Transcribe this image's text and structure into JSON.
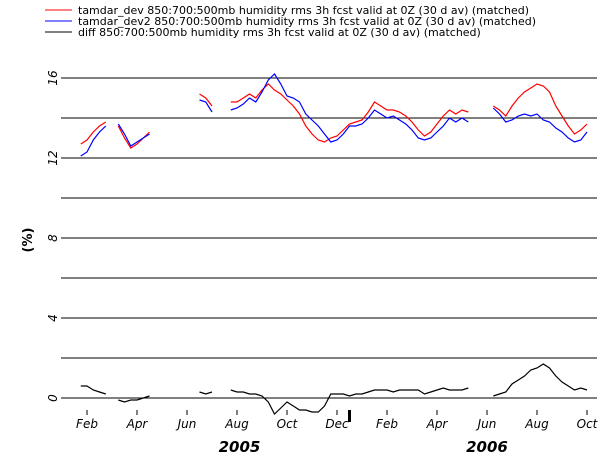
{
  "chart_data": {
    "type": "line",
    "y_label": "(%)",
    "xlim": [
      0.2,
      21.4
    ],
    "ylim": [
      -0.6,
      16.4
    ],
    "yticks": [
      0,
      4,
      8,
      12,
      16
    ],
    "grid": [
      0,
      2,
      4,
      6,
      8,
      10,
      12,
      14,
      16
    ],
    "xticks": [
      {
        "value": 1,
        "label": "Feb"
      },
      {
        "value": 3,
        "label": "Apr"
      },
      {
        "value": 5,
        "label": "Jun"
      },
      {
        "value": 7,
        "label": "Aug"
      },
      {
        "value": 9,
        "label": "Oct"
      },
      {
        "value": 11,
        "label": "Dec"
      },
      {
        "value": 13,
        "label": "Feb"
      },
      {
        "value": 15,
        "label": "Apr"
      },
      {
        "value": 17,
        "label": "Jun"
      },
      {
        "value": 19,
        "label": "Aug"
      },
      {
        "value": 21,
        "label": "Oct"
      }
    ],
    "year_ticks": [
      {
        "value": 7.1,
        "label": "2005"
      },
      {
        "value": 17,
        "label": "2006"
      }
    ],
    "year_boundary": 11.5,
    "x": [
      0.75,
      1.0,
      1.25,
      1.5,
      1.75,
      2.0,
      2.25,
      2.5,
      2.75,
      3.0,
      3.25,
      3.5,
      3.75,
      4.0,
      4.25,
      4.5,
      4.75,
      5.0,
      5.25,
      5.5,
      5.75,
      6.0,
      6.25,
      6.5,
      6.75,
      7.0,
      7.25,
      7.5,
      7.75,
      8.0,
      8.25,
      8.5,
      8.75,
      9.0,
      9.25,
      9.5,
      9.75,
      10.0,
      10.25,
      10.5,
      10.75,
      11.0,
      11.25,
      11.5,
      11.75,
      12.0,
      12.25,
      12.5,
      12.75,
      13.0,
      13.25,
      13.5,
      13.75,
      14.0,
      14.25,
      14.5,
      14.75,
      15.0,
      15.25,
      15.5,
      15.75,
      16.0,
      16.25,
      16.5,
      16.75,
      17.0,
      17.25,
      17.5,
      17.75,
      18.0,
      18.25,
      18.5,
      18.75,
      19.0,
      19.25,
      19.5,
      19.75,
      20.0,
      20.25,
      20.5,
      20.75,
      21.0
    ],
    "series": [
      {
        "name": "tamdar_dev 850:700:500mb humidity rms 3h fcst valid at 0Z (30 d av) (matched)",
        "color": "#ff0000",
        "values": [
          12.7,
          12.9,
          13.3,
          13.6,
          13.8,
          null,
          13.6,
          13.0,
          12.5,
          12.7,
          13.0,
          13.3,
          null,
          null,
          null,
          null,
          null,
          null,
          null,
          15.2,
          15.0,
          14.6,
          null,
          null,
          14.8,
          14.8,
          15.0,
          15.2,
          15.0,
          15.4,
          15.7,
          15.4,
          15.2,
          14.9,
          14.6,
          14.2,
          13.6,
          13.2,
          12.9,
          12.8,
          13.0,
          13.1,
          13.4,
          13.7,
          13.8,
          13.9,
          14.3,
          14.8,
          14.6,
          14.4,
          14.4,
          14.3,
          14.1,
          13.8,
          13.4,
          13.1,
          13.3,
          13.7,
          14.1,
          14.4,
          14.2,
          14.4,
          14.3,
          null,
          null,
          null,
          14.6,
          14.4,
          14.1,
          14.6,
          15.0,
          15.3,
          15.5,
          15.7,
          15.6,
          15.3,
          14.6,
          14.1,
          13.6,
          13.2,
          13.4,
          13.7
        ]
      },
      {
        "name": "tamdar_dev2 850:700:500mb humidity rms 3h fcst valid at 0Z (30 d av) (matched)",
        "color": "#0000ff",
        "values": [
          12.1,
          12.3,
          12.9,
          13.3,
          13.6,
          null,
          13.7,
          13.2,
          12.6,
          12.8,
          13.0,
          13.2,
          null,
          null,
          null,
          null,
          null,
          null,
          null,
          14.9,
          14.8,
          14.3,
          null,
          null,
          14.4,
          14.5,
          14.7,
          15.0,
          14.8,
          15.3,
          15.9,
          16.2,
          15.7,
          15.1,
          15.0,
          14.8,
          14.2,
          13.9,
          13.6,
          13.2,
          12.8,
          12.9,
          13.2,
          13.6,
          13.6,
          13.7,
          14.0,
          14.4,
          14.2,
          14.0,
          14.1,
          13.9,
          13.7,
          13.4,
          13.0,
          12.9,
          13.0,
          13.3,
          13.6,
          14.0,
          13.8,
          14.0,
          13.8,
          null,
          null,
          null,
          14.5,
          14.2,
          13.8,
          13.9,
          14.1,
          14.2,
          14.1,
          14.2,
          13.9,
          13.8,
          13.5,
          13.3,
          13.0,
          12.8,
          12.9,
          13.3
        ]
      },
      {
        "name": "diff 850:700:500mb humidity rms 3h fcst valid at 0Z (30 d av) (matched)",
        "color": "#000000",
        "values": [
          0.6,
          0.6,
          0.4,
          0.3,
          0.2,
          null,
          -0.1,
          -0.2,
          -0.1,
          -0.1,
          0.0,
          0.1,
          null,
          null,
          null,
          null,
          null,
          null,
          null,
          0.3,
          0.2,
          0.3,
          null,
          null,
          0.4,
          0.3,
          0.3,
          0.2,
          0.2,
          0.1,
          -0.2,
          -0.8,
          -0.5,
          -0.2,
          -0.4,
          -0.6,
          -0.6,
          -0.7,
          -0.7,
          -0.4,
          0.2,
          0.2,
          0.2,
          0.1,
          0.2,
          0.2,
          0.3,
          0.4,
          0.4,
          0.4,
          0.3,
          0.4,
          0.4,
          0.4,
          0.4,
          0.2,
          0.3,
          0.4,
          0.5,
          0.4,
          0.4,
          0.4,
          0.5,
          null,
          null,
          null,
          0.1,
          0.2,
          0.3,
          0.7,
          0.9,
          1.1,
          1.4,
          1.5,
          1.7,
          1.5,
          1.1,
          0.8,
          0.6,
          0.4,
          0.5,
          0.4
        ]
      }
    ]
  }
}
